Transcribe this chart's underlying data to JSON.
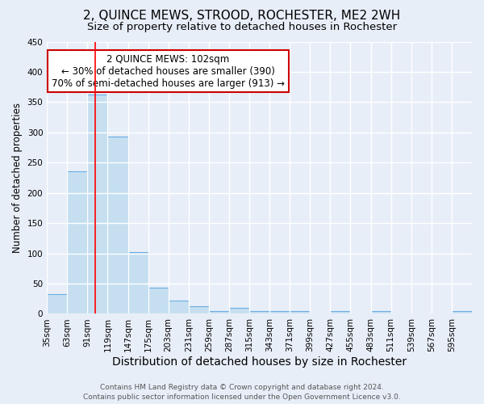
{
  "title": "2, QUINCE MEWS, STROOD, ROCHESTER, ME2 2WH",
  "subtitle": "Size of property relative to detached houses in Rochester",
  "xlabel": "Distribution of detached houses by size in Rochester",
  "ylabel": "Number of detached properties",
  "bar_heights": [
    33,
    236,
    362,
    293,
    102,
    44,
    22,
    13,
    5,
    10,
    5,
    5,
    4,
    0,
    4,
    0,
    4,
    0,
    0,
    0,
    4
  ],
  "bin_edges": [
    35,
    63,
    91,
    119,
    147,
    175,
    203,
    231,
    259,
    287,
    315,
    343,
    371,
    399,
    427,
    455,
    483,
    511,
    539,
    567,
    595,
    623
  ],
  "x_tick_labels": [
    "35sqm",
    "63sqm",
    "91sqm",
    "119sqm",
    "147sqm",
    "175sqm",
    "203sqm",
    "231sqm",
    "259sqm",
    "287sqm",
    "315sqm",
    "343sqm",
    "371sqm",
    "399sqm",
    "427sqm",
    "455sqm",
    "483sqm",
    "511sqm",
    "539sqm",
    "567sqm",
    "595sqm"
  ],
  "bar_color": "#c5dff0",
  "bar_edgecolor": "#6aade4",
  "bar_linewidth": 0.8,
  "red_line_x": 102,
  "annotation_text": "2 QUINCE MEWS: 102sqm\n← 30% of detached houses are smaller (390)\n70% of semi-detached houses are larger (913) →",
  "annotation_box_edgecolor": "#cc0000",
  "annotation_box_facecolor": "#ffffff",
  "ylim": [
    0,
    450
  ],
  "yticks": [
    0,
    50,
    100,
    150,
    200,
    250,
    300,
    350,
    400,
    450
  ],
  "background_color": "#e8eef8",
  "grid_color": "#ffffff",
  "footer_line1": "Contains HM Land Registry data © Crown copyright and database right 2024.",
  "footer_line2": "Contains public sector information licensed under the Open Government Licence v3.0.",
  "title_fontsize": 11,
  "subtitle_fontsize": 9.5,
  "xlabel_fontsize": 10,
  "ylabel_fontsize": 8.5,
  "tick_fontsize": 7.5,
  "annotation_fontsize": 8.5,
  "footer_fontsize": 6.5
}
